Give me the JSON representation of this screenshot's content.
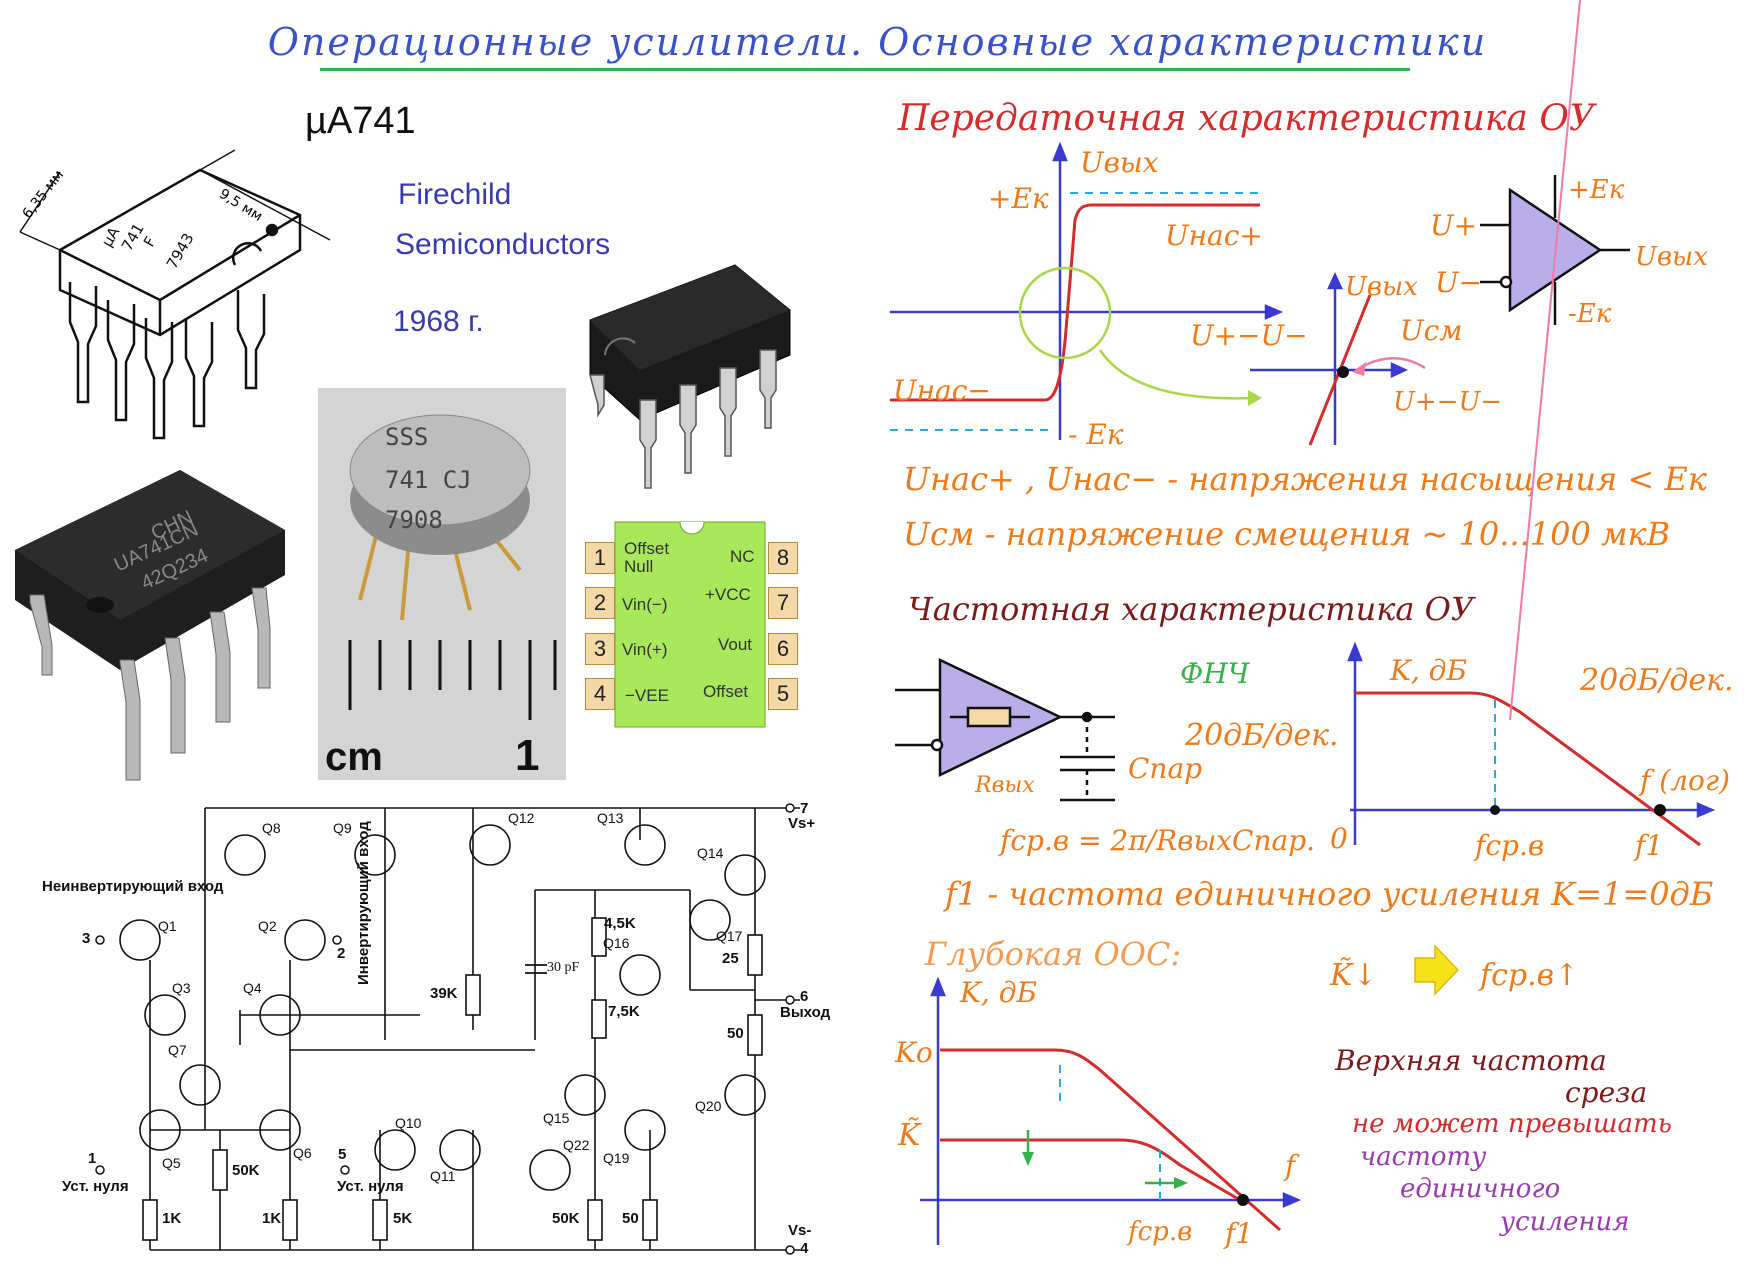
{
  "header": {
    "title": "Операционные усилители. Основные характеристики"
  },
  "chip": {
    "name": "µA741",
    "maker_line1": "Firechild",
    "maker_line2": "Semiconductors",
    "year": "1968 г.",
    "dim_width": "6,35 мм",
    "dim_length": "9,5 мм",
    "drawing_marking": [
      "µA",
      "741",
      "F",
      "7943"
    ],
    "photo_marking": [
      "CHN",
      "UA741CN",
      "42Q234"
    ],
    "can_marking": [
      "SSS",
      "741 CJ",
      "7908"
    ],
    "ruler_unit": "cm",
    "ruler_mark": "1"
  },
  "pinout": {
    "left_nums": [
      "1",
      "2",
      "3",
      "4"
    ],
    "right_nums": [
      "8",
      "7",
      "6",
      "5"
    ],
    "left_labels": [
      "Offset Null",
      "Vin(−)",
      "Vin(+)",
      "−VEE"
    ],
    "right_labels": [
      "NC",
      "+VCC",
      "Vout",
      "Offset"
    ]
  },
  "transfer": {
    "heading": "Передаточная характеристика ОУ",
    "y_axis": "Uвых",
    "plus_e": "+Eк",
    "minus_e": "- Eк",
    "sat_plus": "Uнас+",
    "sat_minus": "Uнас−",
    "x_axis": "U+−U−",
    "zoom_y": "Uвых",
    "zoom_x": "U+−U−",
    "offset": "Uсм",
    "note_1": "Uнас+ , Uнас− - напряжения насыщения < Eк",
    "note_2": "Uсм - напряжение смещения ~ 10...100 мкВ"
  },
  "symbol": {
    "in_plus": "U+",
    "in_minus": "U−",
    "out": "Uвых",
    "supply_plus": "+Eк",
    "supply_minus": "-Eк"
  },
  "frequency": {
    "heading": "Частотная характеристика ОУ",
    "lpf": "ФНЧ",
    "slope_left": "20дБ/дек.",
    "r_out": "Rвых",
    "c_par": "Cпар",
    "formula": "fср.в = 2π/RвыхCпар.",
    "y_axis": "K, дБ",
    "slope_right": "20дБ/дек.",
    "x_axis": "f (лог)",
    "origin": "0",
    "f_cut": "fср.в",
    "f_one": "f1",
    "unity_note": "f1 - частота единичного усиления K=1=0дБ"
  },
  "feedback": {
    "heading": "Глубокая ООС:",
    "y_axis": "K, дБ",
    "k0": "Kо",
    "k_tilde": "K̃",
    "x_axis": "f",
    "f_cut": "fср.в",
    "f_one": "f1",
    "rule_k": "K̃↓",
    "rule_f": "fср.в↑",
    "note_lines": [
      "Верхняя частота",
      "среза",
      "не может превышать",
      "частоту",
      "единичного",
      "усиления"
    ]
  },
  "schematic": {
    "transistors": [
      "Q1",
      "Q2",
      "Q3",
      "Q4",
      "Q5",
      "Q6",
      "Q7",
      "Q8",
      "Q9",
      "Q10",
      "Q11",
      "Q12",
      "Q13",
      "Q14",
      "Q15",
      "Q16",
      "Q17",
      "Q19",
      "Q20",
      "Q22"
    ],
    "resistors": [
      "4,5K",
      "7,5K",
      "39K",
      "50K",
      "1K",
      "1K",
      "5K",
      "50K",
      "50",
      "25",
      "50"
    ],
    "capacitor": "30 pF",
    "non_inv_label": "Неинвертирующий вход",
    "inv_label": "Инвертирующий вход",
    "offset_label_1": "Уст. нуля",
    "offset_label_2": "Уст. нуля",
    "out_label": "Выход",
    "vs_plus": "Vs+",
    "vs_minus": "Vs-",
    "pin_3": "3",
    "pin_2": "2",
    "pin_1": "1",
    "pin_5": "5",
    "pin_6": "6",
    "pin_7": "7",
    "pin_4": "4"
  },
  "colors": {
    "title": "#3a52c8",
    "red_ink": "#d22c2c",
    "blue_ink": "#3a3ad0",
    "orange_ink": "#f07a1a",
    "green_ink": "#33b24a",
    "purple_ink": "#9a3ab0",
    "triangle_fill": "#b9aee8",
    "pinout_bg": "#a8e85a"
  }
}
